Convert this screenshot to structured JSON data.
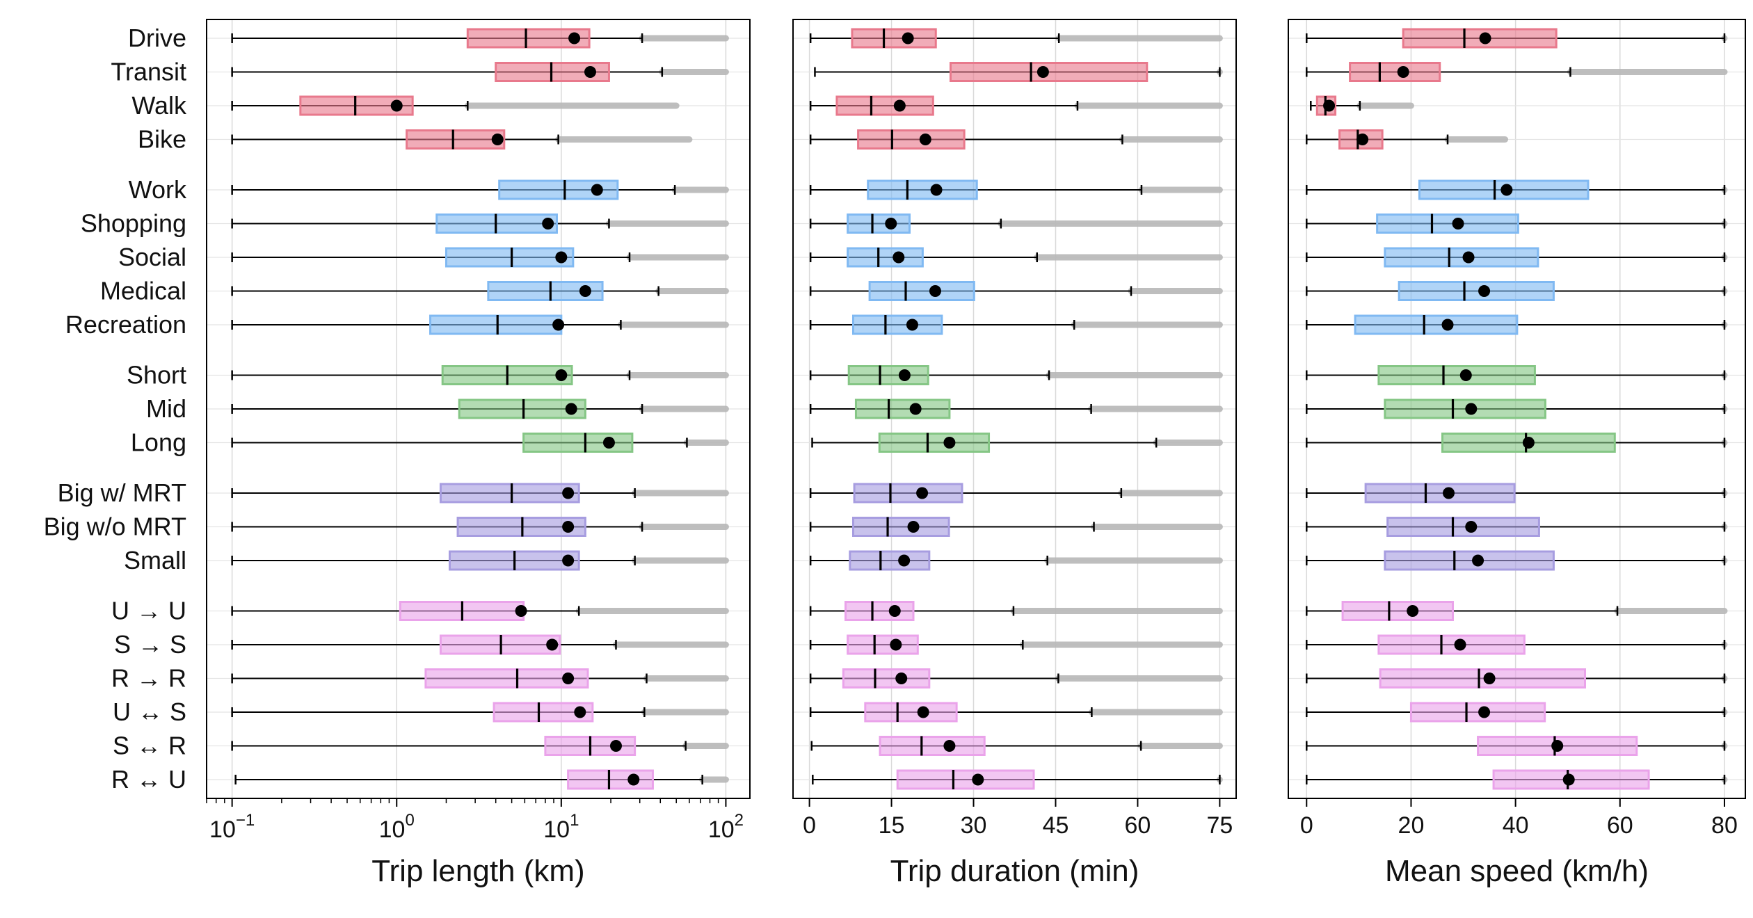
{
  "chart_data": {
    "type": "boxplot",
    "categories": [
      "Drive",
      "Transit",
      "Walk",
      "Bike",
      "Work",
      "Shopping",
      "Social",
      "Medical",
      "Recreation",
      "Short",
      "Mid",
      "Long",
      "Big w/ MRT",
      "Big w/o MRT",
      "Small",
      "U → U",
      "S → S",
      "R → R",
      "U ↔ S",
      "S ↔ R",
      "R ↔ U"
    ],
    "groups": [
      {
        "members": [
          "Drive",
          "Transit",
          "Walk",
          "Bike"
        ],
        "color": "#e8798c"
      },
      {
        "members": [
          "Work",
          "Shopping",
          "Social",
          "Medical",
          "Recreation"
        ],
        "color": "#80b9f2"
      },
      {
        "members": [
          "Short",
          "Mid",
          "Long"
        ],
        "color": "#85c685"
      },
      {
        "members": [
          "Big w/ MRT",
          "Big w/o MRT",
          "Small"
        ],
        "color": "#a79de0"
      },
      {
        "members": [
          "U → U",
          "S → S",
          "R → R",
          "U ↔ S",
          "S ↔ R",
          "R ↔ U"
        ],
        "color": "#eaa3ea"
      }
    ],
    "outlier_color": "#b8b8b8",
    "grid": true,
    "legend": "none",
    "panels": [
      {
        "xlabel": "Trip length (km)",
        "scale": "log",
        "xlim": [
          0.07,
          140
        ],
        "ticks": [
          0.1,
          1,
          10,
          100
        ],
        "tick_labels": [
          {
            "base": "10",
            "exp": "−1"
          },
          {
            "base": "10",
            "exp": "0"
          },
          {
            "base": "10",
            "exp": "1"
          },
          {
            "base": "10",
            "exp": "2"
          }
        ],
        "stats": [
          {
            "min": 0.1,
            "q1": 2.7,
            "median": 6.1,
            "mean": 12.0,
            "q3": 14.8,
            "whisker": 31,
            "outlier_max": 100
          },
          {
            "min": 0.1,
            "q1": 4.0,
            "median": 8.7,
            "mean": 15.0,
            "q3": 19.5,
            "whisker": 41,
            "outlier_max": 100
          },
          {
            "min": 0.1,
            "q1": 0.26,
            "median": 0.56,
            "mean": 1.0,
            "q3": 1.25,
            "whisker": 2.7,
            "outlier_max": 50
          },
          {
            "min": 0.1,
            "q1": 1.15,
            "median": 2.2,
            "mean": 4.1,
            "q3": 4.5,
            "whisker": 9.6,
            "outlier_max": 60
          },
          {
            "min": 0.1,
            "q1": 4.2,
            "median": 10.5,
            "mean": 16.5,
            "q3": 22.0,
            "whisker": 49,
            "outlier_max": 100
          },
          {
            "min": 0.1,
            "q1": 1.75,
            "median": 4.0,
            "mean": 8.3,
            "q3": 9.4,
            "whisker": 19.5,
            "outlier_max": 100
          },
          {
            "min": 0.1,
            "q1": 2.0,
            "median": 5.0,
            "mean": 10.0,
            "q3": 11.8,
            "whisker": 26,
            "outlier_max": 100
          },
          {
            "min": 0.1,
            "q1": 3.6,
            "median": 8.6,
            "mean": 14.0,
            "q3": 17.8,
            "whisker": 39,
            "outlier_max": 100
          },
          {
            "min": 0.1,
            "q1": 1.6,
            "median": 4.1,
            "mean": 9.6,
            "q3": 10.0,
            "whisker": 23,
            "outlier_max": 100
          },
          {
            "min": 0.1,
            "q1": 1.9,
            "median": 4.7,
            "mean": 10.0,
            "q3": 11.6,
            "whisker": 26,
            "outlier_max": 100
          },
          {
            "min": 0.1,
            "q1": 2.4,
            "median": 5.9,
            "mean": 11.5,
            "q3": 14.0,
            "whisker": 31,
            "outlier_max": 100
          },
          {
            "min": 0.1,
            "q1": 5.9,
            "median": 14.0,
            "mean": 19.5,
            "q3": 27.0,
            "whisker": 58,
            "outlier_max": 100
          },
          {
            "min": 0.1,
            "q1": 1.85,
            "median": 5.0,
            "mean": 11.0,
            "q3": 12.8,
            "whisker": 28,
            "outlier_max": 100
          },
          {
            "min": 0.1,
            "q1": 2.35,
            "median": 5.8,
            "mean": 11.0,
            "q3": 14.0,
            "whisker": 31,
            "outlier_max": 100
          },
          {
            "min": 0.1,
            "q1": 2.1,
            "median": 5.2,
            "mean": 11.0,
            "q3": 12.8,
            "whisker": 28,
            "outlier_max": 100
          },
          {
            "min": 0.1,
            "q1": 1.05,
            "median": 2.5,
            "mean": 5.7,
            "q3": 5.9,
            "whisker": 12.8,
            "outlier_max": 100
          },
          {
            "min": 0.1,
            "q1": 1.85,
            "median": 4.3,
            "mean": 8.8,
            "q3": 9.8,
            "whisker": 21.5,
            "outlier_max": 100
          },
          {
            "min": 0.1,
            "q1": 1.5,
            "median": 5.4,
            "mean": 11.0,
            "q3": 14.5,
            "whisker": 33,
            "outlier_max": 100
          },
          {
            "min": 0.1,
            "q1": 3.9,
            "median": 7.3,
            "mean": 13.0,
            "q3": 15.5,
            "whisker": 32,
            "outlier_max": 100
          },
          {
            "min": 0.1,
            "q1": 8.0,
            "median": 15.0,
            "mean": 21.5,
            "q3": 28.0,
            "whisker": 57,
            "outlier_max": 100
          },
          {
            "min": 0.105,
            "q1": 11.0,
            "median": 19.5,
            "mean": 27.5,
            "q3": 36.0,
            "whisker": 72,
            "outlier_max": 100
          }
        ]
      },
      {
        "xlabel": "Trip duration (min)",
        "scale": "linear",
        "xlim": [
          -3,
          78
        ],
        "ticks": [
          0,
          15,
          30,
          45,
          60,
          75
        ],
        "tick_labels": [
          "0",
          "15",
          "30",
          "45",
          "60",
          "75"
        ],
        "stats": [
          {
            "min": 0.2,
            "q1": 7.8,
            "median": 13.6,
            "mean": 18.0,
            "q3": 23.1,
            "whisker": 45.6,
            "outlier_max": 75
          },
          {
            "min": 1.0,
            "q1": 25.8,
            "median": 40.5,
            "mean": 42.7,
            "q3": 61.7,
            "whisker": 75,
            "outlier_max": 75
          },
          {
            "min": 0.2,
            "q1": 5.0,
            "median": 11.3,
            "mean": 16.5,
            "q3": 22.6,
            "whisker": 49.0,
            "outlier_max": 75
          },
          {
            "min": 0.2,
            "q1": 8.9,
            "median": 15.1,
            "mean": 21.2,
            "q3": 28.3,
            "whisker": 57.2,
            "outlier_max": 75
          },
          {
            "min": 0.2,
            "q1": 10.7,
            "median": 17.9,
            "mean": 23.2,
            "q3": 30.6,
            "whisker": 60.7,
            "outlier_max": 75
          },
          {
            "min": 0.2,
            "q1": 7.0,
            "median": 11.5,
            "mean": 14.9,
            "q3": 18.3,
            "whisker": 35.0,
            "outlier_max": 75
          },
          {
            "min": 0.2,
            "q1": 7.0,
            "median": 12.6,
            "mean": 16.3,
            "q3": 20.7,
            "whisker": 41.6,
            "outlier_max": 75
          },
          {
            "min": 0.2,
            "q1": 11.0,
            "median": 17.6,
            "mean": 23.0,
            "q3": 30.1,
            "whisker": 58.8,
            "outlier_max": 75
          },
          {
            "min": 0.2,
            "q1": 8.0,
            "median": 13.9,
            "mean": 18.8,
            "q3": 24.2,
            "whisker": 48.4,
            "outlier_max": 75
          },
          {
            "min": 0.2,
            "q1": 7.2,
            "median": 12.9,
            "mean": 17.4,
            "q3": 21.7,
            "whisker": 43.8,
            "outlier_max": 75
          },
          {
            "min": 0.2,
            "q1": 8.5,
            "median": 14.5,
            "mean": 19.4,
            "q3": 25.6,
            "whisker": 51.5,
            "outlier_max": 75
          },
          {
            "min": 0.5,
            "q1": 12.8,
            "median": 21.6,
            "mean": 25.6,
            "q3": 32.8,
            "whisker": 63.4,
            "outlier_max": 75
          },
          {
            "min": 0.2,
            "q1": 8.2,
            "median": 14.8,
            "mean": 20.6,
            "q3": 27.9,
            "whisker": 57.0,
            "outlier_max": 75
          },
          {
            "min": 0.2,
            "q1": 8.0,
            "median": 14.3,
            "mean": 19.0,
            "q3": 25.5,
            "whisker": 52.0,
            "outlier_max": 75
          },
          {
            "min": 0.2,
            "q1": 7.4,
            "median": 13.0,
            "mean": 17.3,
            "q3": 21.9,
            "whisker": 43.5,
            "outlier_max": 75
          },
          {
            "min": 0.2,
            "q1": 6.6,
            "median": 11.5,
            "mean": 15.6,
            "q3": 19.0,
            "whisker": 37.3,
            "outlier_max": 75
          },
          {
            "min": 0.2,
            "q1": 7.0,
            "median": 11.9,
            "mean": 15.8,
            "q3": 19.8,
            "whisker": 39.0,
            "outlier_max": 75
          },
          {
            "min": 0.2,
            "q1": 6.2,
            "median": 12.0,
            "mean": 16.8,
            "q3": 21.9,
            "whisker": 45.5,
            "outlier_max": 75
          },
          {
            "min": 0.2,
            "q1": 10.2,
            "median": 16.1,
            "mean": 20.8,
            "q3": 26.9,
            "whisker": 51.6,
            "outlier_max": 75
          },
          {
            "min": 0.4,
            "q1": 12.9,
            "median": 20.5,
            "mean": 25.6,
            "q3": 32.0,
            "whisker": 60.6,
            "outlier_max": 75
          },
          {
            "min": 0.6,
            "q1": 16.1,
            "median": 26.3,
            "mean": 30.8,
            "q3": 41.0,
            "whisker": 75,
            "outlier_max": 75
          }
        ]
      },
      {
        "xlabel": "Mean speed (km/h)",
        "scale": "linear",
        "xlim": [
          -3.5,
          84
        ],
        "ticks": [
          0,
          20,
          40,
          60,
          80
        ],
        "tick_labels": [
          "0",
          "20",
          "40",
          "60",
          "80"
        ],
        "stats": [
          {
            "min": 0,
            "q1": 18.5,
            "median": 30.2,
            "mean": 34.2,
            "q3": 47.8,
            "whisker": 80,
            "outlier_max": 80
          },
          {
            "min": 0,
            "q1": 8.3,
            "median": 14.0,
            "mean": 18.5,
            "q3": 25.5,
            "whisker": 50.5,
            "outlier_max": 80
          },
          {
            "min": 0.8,
            "q1": 2.0,
            "median": 3.6,
            "mean": 4.3,
            "q3": 5.5,
            "whisker": 10.2,
            "outlier_max": 20
          },
          {
            "min": 0,
            "q1": 6.3,
            "median": 9.8,
            "mean": 10.7,
            "q3": 14.5,
            "whisker": 27.0,
            "outlier_max": 38
          },
          {
            "min": 0,
            "q1": 21.6,
            "median": 36.0,
            "mean": 38.3,
            "q3": 53.9,
            "whisker": 80,
            "outlier_max": 80
          },
          {
            "min": 0,
            "q1": 13.5,
            "median": 24.0,
            "mean": 29.0,
            "q3": 40.5,
            "whisker": 80,
            "outlier_max": 80
          },
          {
            "min": 0,
            "q1": 15.0,
            "median": 27.3,
            "mean": 31.0,
            "q3": 44.3,
            "whisker": 80,
            "outlier_max": 80
          },
          {
            "min": 0,
            "q1": 17.7,
            "median": 30.2,
            "mean": 34.0,
            "q3": 47.3,
            "whisker": 80,
            "outlier_max": 80
          },
          {
            "min": 0,
            "q1": 9.3,
            "median": 22.5,
            "mean": 27.0,
            "q3": 40.3,
            "whisker": 80,
            "outlier_max": 80
          },
          {
            "min": 0,
            "q1": 13.8,
            "median": 26.2,
            "mean": 30.5,
            "q3": 43.7,
            "whisker": 80,
            "outlier_max": 80
          },
          {
            "min": 0,
            "q1": 15.0,
            "median": 28.0,
            "mean": 31.5,
            "q3": 45.7,
            "whisker": 80,
            "outlier_max": 80
          },
          {
            "min": 0,
            "q1": 26.0,
            "median": 42.0,
            "mean": 42.5,
            "q3": 59.0,
            "whisker": 80,
            "outlier_max": 80
          },
          {
            "min": 0,
            "q1": 11.3,
            "median": 22.8,
            "mean": 27.2,
            "q3": 39.8,
            "whisker": 80,
            "outlier_max": 80
          },
          {
            "min": 0,
            "q1": 15.5,
            "median": 28.0,
            "mean": 31.5,
            "q3": 44.5,
            "whisker": 80,
            "outlier_max": 80
          },
          {
            "min": 0,
            "q1": 15.0,
            "median": 28.3,
            "mean": 32.8,
            "q3": 47.3,
            "whisker": 80,
            "outlier_max": 80
          },
          {
            "min": 0,
            "q1": 6.9,
            "median": 15.8,
            "mean": 20.3,
            "q3": 28.0,
            "whisker": 59.5,
            "outlier_max": 80
          },
          {
            "min": 0,
            "q1": 13.8,
            "median": 25.8,
            "mean": 29.4,
            "q3": 41.7,
            "whisker": 80,
            "outlier_max": 80
          },
          {
            "min": 0,
            "q1": 14.1,
            "median": 33.0,
            "mean": 35.0,
            "q3": 53.3,
            "whisker": 80,
            "outlier_max": 80
          },
          {
            "min": 0,
            "q1": 20.0,
            "median": 30.6,
            "mean": 34.0,
            "q3": 45.6,
            "whisker": 80,
            "outlier_max": 80
          },
          {
            "min": 0,
            "q1": 32.8,
            "median": 47.5,
            "mean": 48.0,
            "q3": 63.2,
            "whisker": 80,
            "outlier_max": 80
          },
          {
            "min": 0,
            "q1": 35.8,
            "median": 50.0,
            "mean": 50.2,
            "q3": 65.5,
            "whisker": 80,
            "outlier_max": 80
          }
        ]
      }
    ]
  }
}
